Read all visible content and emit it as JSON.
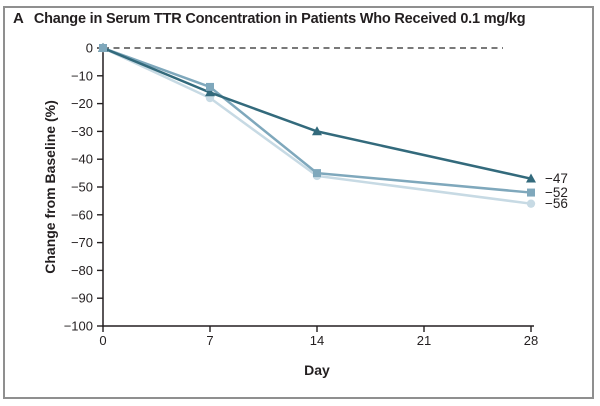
{
  "figure": {
    "panel_label": "A",
    "title": "Change in Serum TTR Concentration in Patients Who Received 0.1 mg/kg"
  },
  "chart_data": {
    "type": "line",
    "x": [
      0,
      7,
      14,
      28
    ],
    "xlabel": "Day",
    "ylabel": "Change from Baseline (%)",
    "xlim": [
      0,
      28
    ],
    "ylim": [
      -100,
      0
    ],
    "xticks": [
      0,
      7,
      14,
      21,
      28
    ],
    "xtick_labels": [
      "0",
      "7",
      "14",
      "21",
      "28"
    ],
    "yticks": [
      0,
      -10,
      -20,
      -30,
      -40,
      -50,
      -60,
      -70,
      -80,
      -90,
      -100
    ],
    "ytick_labels": [
      "0",
      "−10",
      "−20",
      "−30",
      "−40",
      "−50",
      "−60",
      "−70",
      "−80",
      "−90",
      "−100"
    ],
    "grid": false,
    "zero_reference_line": {
      "shown": true,
      "style": "dashed",
      "value": 0
    },
    "series": [
      {
        "name": "patient-circle",
        "marker": "circle",
        "color": "#c7dae4",
        "values": [
          0,
          -18,
          -46,
          -56
        ],
        "end_label": "−56"
      },
      {
        "name": "patient-square",
        "marker": "square",
        "color": "#7fa8bc",
        "values": [
          0,
          -14,
          -45,
          -52
        ],
        "end_label": "−52"
      },
      {
        "name": "patient-triangle",
        "marker": "triangle",
        "color": "#336a7c",
        "values": [
          0,
          -16,
          -30,
          -47
        ],
        "end_label": "−47"
      }
    ],
    "colors": {
      "axis": "#231f20",
      "text": "#231f20",
      "zero_line": "#4d4d4d",
      "frame_border": "#8f8f8f",
      "background": "#ffffff"
    }
  }
}
